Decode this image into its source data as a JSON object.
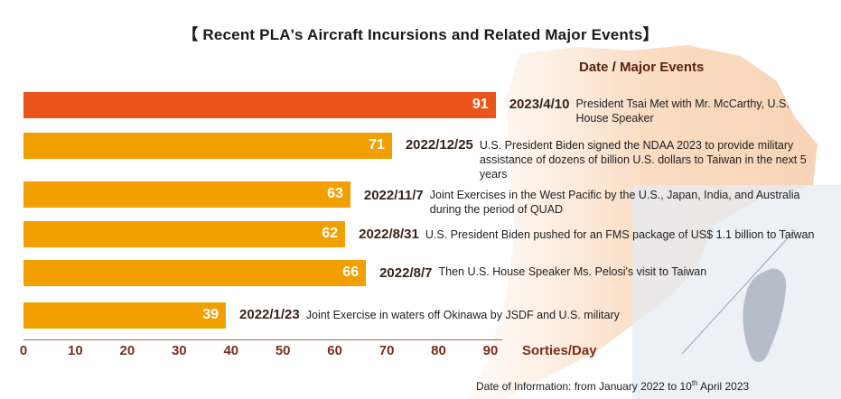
{
  "chart_data": {
    "type": "bar",
    "orientation": "horizontal",
    "title": "【 Recent PLA's Aircraft Incursions and Related Major Events】",
    "header": {
      "date_label": "Date",
      "separator": " / ",
      "events_label": "Major Events"
    },
    "xlabel": "Sorties/Day",
    "xlim": [
      0,
      90
    ],
    "x_ticks": [
      "0",
      "10",
      "20",
      "30",
      "40",
      "50",
      "60",
      "70",
      "80",
      "90"
    ],
    "bars": [
      {
        "value": 91,
        "date": "2023/4/10",
        "event": "President Tsai Met with Mr. McCarthy, U.S. House Speaker",
        "highlight": true
      },
      {
        "value": 71,
        "date": "2022/12/25",
        "event": "U.S. President Biden signed the NDAA 2023 to provide military assistance of dozens of billion U.S. dollars to Taiwan in the next 5 years",
        "highlight": false
      },
      {
        "value": 63,
        "date": "2022/11/7",
        "event": "Joint Exercises in the West Pacific by the U.S., Japan, India, and Australia during the period of QUAD",
        "highlight": false
      },
      {
        "value": 62,
        "date": "2022/8/31",
        "event": "U.S. President Biden pushed for an FMS package of US$ 1.1 billion to Taiwan",
        "highlight": false
      },
      {
        "value": 66,
        "date": "2022/8/7",
        "event": "Then U.S. House Speaker Ms. Pelosi's visit to Taiwan",
        "highlight": false
      },
      {
        "value": 39,
        "date": "2022/1/23",
        "event": "Joint Exercise in waters off Okinawa by JSDF and U.S. military",
        "highlight": false
      }
    ],
    "colors": {
      "highlight": "#e8541a",
      "bar": "#f2a000"
    }
  },
  "footnote": {
    "prefix": "Date of Information: from January 2022 to 10",
    "sup": "th",
    "suffix": " April 2023"
  }
}
